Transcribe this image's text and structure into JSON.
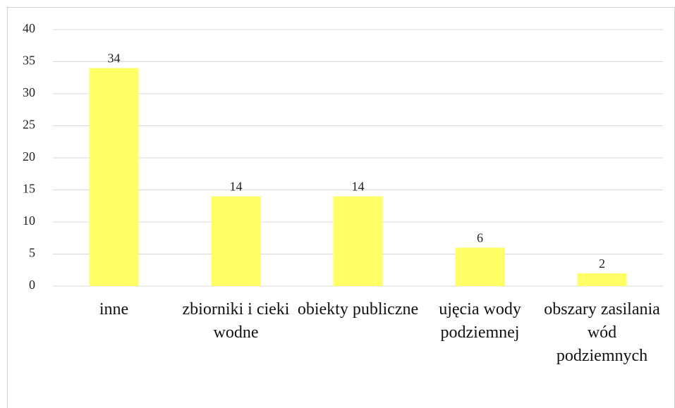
{
  "chart_data": {
    "type": "bar",
    "categories": [
      "inne",
      "zbiorniki i cieki wodne",
      "obiekty publiczne",
      "ujęcia wody podziemnej",
      "obszary zasilania wód podziemnych"
    ],
    "values": [
      34,
      14,
      14,
      6,
      2
    ],
    "color": "#ffff66",
    "ylim": [
      0,
      40
    ],
    "yticks": [
      0,
      5,
      10,
      15,
      20,
      25,
      30,
      35,
      40
    ],
    "grid": true
  }
}
